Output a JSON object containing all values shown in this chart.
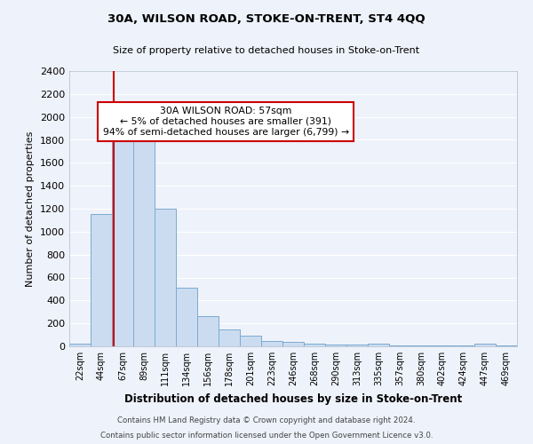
{
  "title": "30A, WILSON ROAD, STOKE-ON-TRENT, ST4 4QQ",
  "subtitle": "Size of property relative to detached houses in Stoke-on-Trent",
  "xlabel": "Distribution of detached houses by size in Stoke-on-Trent",
  "ylabel": "Number of detached properties",
  "bin_labels": [
    "22sqm",
    "44sqm",
    "67sqm",
    "89sqm",
    "111sqm",
    "134sqm",
    "156sqm",
    "178sqm",
    "201sqm",
    "223sqm",
    "246sqm",
    "268sqm",
    "290sqm",
    "313sqm",
    "335sqm",
    "357sqm",
    "380sqm",
    "402sqm",
    "424sqm",
    "447sqm",
    "469sqm"
  ],
  "bar_heights": [
    25,
    1150,
    1930,
    1825,
    1200,
    510,
    260,
    150,
    90,
    50,
    38,
    20,
    15,
    15,
    20,
    5,
    5,
    5,
    5,
    20,
    5
  ],
  "bar_color": "#ccdcf0",
  "bar_edge_color": "#7aaad0",
  "vline_color": "#cc0000",
  "annotation_text": "30A WILSON ROAD: 57sqm\n← 5% of detached houses are smaller (391)\n94% of semi-detached houses are larger (6,799) →",
  "annotation_box_color": "#ffffff",
  "annotation_box_edge_color": "#cc0000",
  "ylim": [
    0,
    2400
  ],
  "yticks": [
    0,
    200,
    400,
    600,
    800,
    1000,
    1200,
    1400,
    1600,
    1800,
    2000,
    2200,
    2400
  ],
  "footnote1": "Contains HM Land Registry data © Crown copyright and database right 2024.",
  "footnote2": "Contains public sector information licensed under the Open Government Licence v3.0.",
  "bg_color": "#eef2fa",
  "grid_color": "#ffffff"
}
